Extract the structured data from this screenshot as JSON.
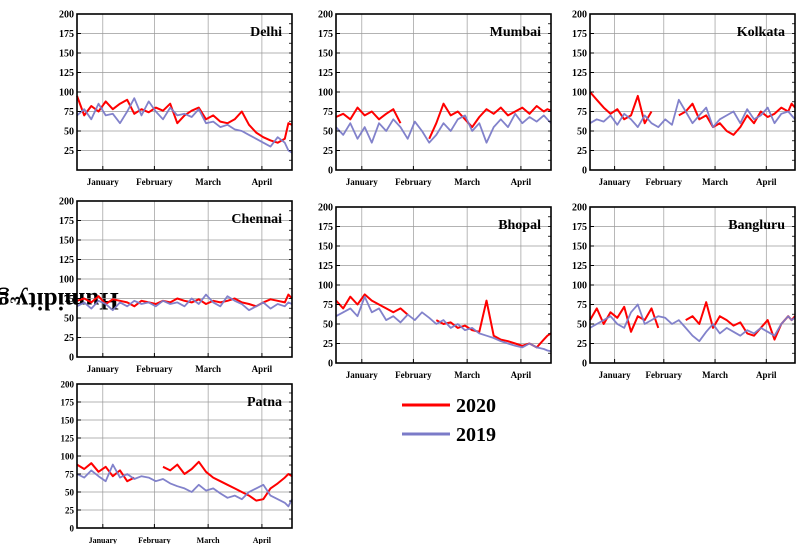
{
  "y_axis_label": "Humidity gram/m",
  "y_axis_label_sup": "3",
  "legend": [
    {
      "label": "2020",
      "color": "#ff0000"
    },
    {
      "label": "2019",
      "color": "#7b7bc8"
    }
  ],
  "chart_data": [
    {
      "type": "line",
      "title": "Delhi",
      "ylim": [
        0,
        200
      ],
      "yticks": [
        25,
        50,
        75,
        100,
        125,
        150,
        175,
        200
      ],
      "xticks": [
        "January",
        "February",
        "March",
        "April"
      ],
      "xlim": [
        0,
        120
      ],
      "grid": true,
      "series": [
        {
          "name": "2020",
          "x": [
            0,
            4,
            8,
            12,
            16,
            20,
            24,
            28,
            32,
            36,
            40,
            44,
            48,
            52,
            56,
            60,
            64,
            68,
            72,
            76,
            80,
            84,
            88,
            92,
            96,
            100,
            104,
            108,
            112,
            116,
            118,
            120
          ],
          "values": [
            95,
            70,
            82,
            75,
            88,
            78,
            85,
            90,
            72,
            78,
            74,
            80,
            76,
            85,
            60,
            70,
            76,
            80,
            65,
            70,
            62,
            60,
            65,
            75,
            58,
            48,
            42,
            38,
            35,
            40,
            60,
            58
          ]
        },
        {
          "name": "2019",
          "x": [
            0,
            4,
            8,
            12,
            16,
            20,
            24,
            28,
            32,
            36,
            40,
            44,
            48,
            52,
            56,
            60,
            64,
            68,
            72,
            76,
            80,
            84,
            88,
            92,
            96,
            100,
            104,
            108,
            112,
            116,
            118,
            120
          ],
          "values": [
            70,
            78,
            65,
            85,
            70,
            72,
            60,
            75,
            92,
            70,
            88,
            75,
            65,
            80,
            70,
            72,
            68,
            78,
            60,
            62,
            55,
            58,
            52,
            50,
            45,
            40,
            35,
            30,
            42,
            35,
            25,
            22
          ]
        }
      ]
    },
    {
      "type": "line",
      "title": "Mumbai",
      "ylim": [
        0,
        200
      ],
      "yticks": [
        0,
        25,
        50,
        75,
        100,
        125,
        150,
        175,
        200
      ],
      "xticks": [
        "January",
        "February",
        "March",
        "April"
      ],
      "xlim": [
        0,
        120
      ],
      "grid": true,
      "series": [
        {
          "name": "2020",
          "x": [
            0,
            4,
            8,
            12,
            16,
            20,
            24,
            28,
            32,
            36,
            40,
            44,
            48,
            52,
            56,
            60,
            64,
            68,
            72,
            76,
            80,
            84,
            88,
            92,
            96,
            100,
            104,
            108,
            112,
            116,
            118,
            120
          ],
          "values": [
            68,
            72,
            65,
            80,
            70,
            75,
            65,
            72,
            78,
            60,
            null,
            null,
            null,
            40,
            60,
            85,
            70,
            75,
            65,
            55,
            68,
            78,
            72,
            80,
            70,
            75,
            80,
            72,
            82,
            75,
            78,
            76
          ]
        },
        {
          "name": "2019",
          "x": [
            0,
            4,
            8,
            12,
            16,
            20,
            24,
            28,
            32,
            36,
            40,
            44,
            48,
            52,
            56,
            60,
            64,
            68,
            72,
            76,
            80,
            84,
            88,
            92,
            96,
            100,
            104,
            108,
            112,
            116,
            118,
            120
          ],
          "values": [
            55,
            45,
            60,
            40,
            55,
            35,
            60,
            50,
            65,
            55,
            40,
            62,
            50,
            35,
            45,
            60,
            50,
            65,
            70,
            50,
            60,
            35,
            55,
            65,
            55,
            72,
            60,
            68,
            62,
            70,
            65,
            60
          ]
        }
      ]
    },
    {
      "type": "line",
      "title": "Kolkata",
      "ylim": [
        0,
        200
      ],
      "yticks": [
        0,
        25,
        50,
        75,
        100,
        125,
        150,
        175,
        200
      ],
      "xticks": [
        "January",
        "February",
        "March",
        "April"
      ],
      "xlim": [
        0,
        120
      ],
      "grid": true,
      "series": [
        {
          "name": "2020",
          "x": [
            0,
            4,
            8,
            12,
            16,
            20,
            24,
            28,
            32,
            36,
            40,
            44,
            48,
            52,
            56,
            60,
            64,
            68,
            72,
            76,
            80,
            84,
            88,
            92,
            96,
            100,
            104,
            108,
            112,
            116,
            118,
            120
          ],
          "values": [
            100,
            90,
            80,
            72,
            78,
            65,
            70,
            95,
            60,
            75,
            null,
            null,
            null,
            70,
            75,
            85,
            65,
            70,
            55,
            60,
            50,
            45,
            55,
            70,
            60,
            75,
            68,
            72,
            80,
            75,
            85,
            80
          ]
        },
        {
          "name": "2019",
          "x": [
            0,
            4,
            8,
            12,
            16,
            20,
            24,
            28,
            32,
            36,
            40,
            44,
            48,
            52,
            56,
            60,
            64,
            68,
            72,
            76,
            80,
            84,
            88,
            92,
            96,
            100,
            104,
            108,
            112,
            116,
            118,
            120
          ],
          "values": [
            60,
            65,
            62,
            70,
            58,
            72,
            65,
            55,
            70,
            60,
            55,
            65,
            58,
            90,
            75,
            60,
            70,
            80,
            55,
            65,
            70,
            75,
            60,
            78,
            65,
            70,
            80,
            60,
            72,
            75,
            70,
            65
          ]
        }
      ]
    },
    {
      "type": "line",
      "title": "Chennai",
      "ylim": [
        0,
        200
      ],
      "yticks": [
        0,
        25,
        50,
        75,
        100,
        125,
        150,
        175,
        200
      ],
      "xticks": [
        "January",
        "February",
        "March",
        "April"
      ],
      "xlim": [
        0,
        120
      ],
      "grid": true,
      "series": [
        {
          "name": "2020",
          "x": [
            0,
            4,
            8,
            12,
            16,
            20,
            24,
            28,
            32,
            36,
            40,
            44,
            48,
            52,
            56,
            60,
            64,
            68,
            72,
            76,
            80,
            84,
            88,
            92,
            96,
            100,
            104,
            108,
            112,
            116,
            118,
            120
          ],
          "values": [
            72,
            75,
            70,
            78,
            68,
            74,
            72,
            70,
            65,
            72,
            70,
            68,
            72,
            70,
            75,
            72,
            70,
            74,
            68,
            72,
            70,
            72,
            75,
            70,
            68,
            65,
            70,
            74,
            72,
            70,
            80,
            75
          ]
        },
        {
          "name": "2019",
          "x": [
            0,
            4,
            8,
            12,
            16,
            20,
            24,
            28,
            32,
            36,
            40,
            44,
            48,
            52,
            56,
            60,
            64,
            68,
            72,
            76,
            80,
            84,
            88,
            92,
            96,
            100,
            104,
            108,
            112,
            116,
            118,
            120
          ],
          "values": [
            65,
            70,
            62,
            72,
            68,
            60,
            70,
            65,
            72,
            68,
            70,
            65,
            72,
            68,
            70,
            65,
            75,
            68,
            80,
            70,
            65,
            78,
            72,
            68,
            60,
            65,
            70,
            62,
            68,
            65,
            70,
            68
          ]
        }
      ]
    },
    {
      "type": "line",
      "title": "Bhopal",
      "ylim": [
        0,
        200
      ],
      "yticks": [
        0,
        25,
        50,
        75,
        100,
        125,
        150,
        175,
        200
      ],
      "xticks": [
        "January",
        "February",
        "March",
        "April"
      ],
      "xlim": [
        0,
        120
      ],
      "grid": true,
      "series": [
        {
          "name": "2020",
          "x": [
            0,
            4,
            8,
            12,
            16,
            20,
            24,
            28,
            32,
            36,
            40,
            44,
            48,
            52,
            56,
            60,
            64,
            68,
            72,
            76,
            80,
            84,
            88,
            92,
            96,
            100,
            104,
            108,
            112,
            116,
            118,
            120
          ],
          "values": [
            80,
            70,
            85,
            75,
            88,
            80,
            75,
            70,
            65,
            70,
            62,
            null,
            null,
            null,
            55,
            50,
            52,
            45,
            48,
            42,
            40,
            80,
            35,
            30,
            28,
            25,
            22,
            25,
            20,
            30,
            35,
            38
          ]
        },
        {
          "name": "2019",
          "x": [
            0,
            4,
            8,
            12,
            16,
            20,
            24,
            28,
            32,
            36,
            40,
            44,
            48,
            52,
            56,
            60,
            64,
            68,
            72,
            76,
            80,
            84,
            88,
            92,
            96,
            100,
            104,
            108,
            112,
            116,
            118,
            120
          ],
          "values": [
            60,
            65,
            70,
            60,
            85,
            65,
            70,
            55,
            60,
            52,
            62,
            55,
            65,
            58,
            50,
            55,
            45,
            50,
            42,
            45,
            38,
            35,
            32,
            28,
            25,
            22,
            20,
            25,
            20,
            18,
            16,
            15
          ]
        }
      ]
    },
    {
      "type": "line",
      "title": "Bangluru",
      "ylim": [
        0,
        200
      ],
      "yticks": [
        0,
        25,
        50,
        75,
        100,
        125,
        150,
        175,
        200
      ],
      "xticks": [
        "January",
        "February",
        "March",
        "April"
      ],
      "xlim": [
        0,
        120
      ],
      "grid": true,
      "series": [
        {
          "name": "2020",
          "x": [
            0,
            4,
            8,
            12,
            16,
            20,
            24,
            28,
            32,
            36,
            40,
            44,
            48,
            52,
            56,
            60,
            64,
            68,
            72,
            76,
            80,
            84,
            88,
            92,
            96,
            100,
            104,
            108,
            112,
            116,
            118,
            120
          ],
          "values": [
            55,
            70,
            50,
            65,
            58,
            72,
            40,
            60,
            55,
            70,
            45,
            null,
            null,
            null,
            55,
            60,
            50,
            78,
            45,
            60,
            55,
            48,
            52,
            38,
            35,
            45,
            55,
            30,
            50,
            60,
            55,
            60
          ]
        },
        {
          "name": "2019",
          "x": [
            0,
            4,
            8,
            12,
            16,
            20,
            24,
            28,
            32,
            36,
            40,
            44,
            48,
            52,
            56,
            60,
            64,
            68,
            72,
            76,
            80,
            84,
            88,
            92,
            96,
            100,
            104,
            108,
            112,
            116,
            118,
            120
          ],
          "values": [
            45,
            50,
            55,
            60,
            50,
            45,
            65,
            75,
            50,
            55,
            60,
            58,
            50,
            55,
            45,
            35,
            28,
            40,
            50,
            38,
            45,
            40,
            35,
            42,
            38,
            45,
            40,
            35,
            50,
            60,
            55,
            58
          ]
        }
      ]
    },
    {
      "type": "line",
      "title": "Patna",
      "ylim": [
        0,
        200
      ],
      "yticks": [
        0,
        25,
        50,
        75,
        100,
        125,
        150,
        175,
        200
      ],
      "xticks": [
        "January",
        "February",
        "March",
        "April"
      ],
      "xlim": [
        0,
        120
      ],
      "grid": true,
      "series": [
        {
          "name": "2020",
          "x": [
            0,
            4,
            8,
            12,
            16,
            20,
            24,
            28,
            32,
            36,
            40,
            44,
            48,
            52,
            56,
            60,
            64,
            68,
            72,
            76,
            80,
            84,
            88,
            92,
            96,
            100,
            104,
            108,
            112,
            116,
            118,
            120
          ],
          "values": [
            88,
            82,
            90,
            78,
            85,
            72,
            80,
            65,
            70,
            null,
            null,
            null,
            85,
            80,
            88,
            75,
            82,
            92,
            78,
            70,
            65,
            60,
            55,
            50,
            45,
            38,
            40,
            55,
            62,
            70,
            75,
            72
          ]
        },
        {
          "name": "2019",
          "x": [
            0,
            4,
            8,
            12,
            16,
            20,
            24,
            28,
            32,
            36,
            40,
            44,
            48,
            52,
            56,
            60,
            64,
            68,
            72,
            76,
            80,
            84,
            88,
            92,
            96,
            100,
            104,
            108,
            112,
            116,
            118,
            120
          ],
          "values": [
            75,
            70,
            80,
            72,
            65,
            88,
            70,
            75,
            68,
            72,
            70,
            65,
            68,
            62,
            58,
            55,
            50,
            60,
            52,
            55,
            48,
            42,
            45,
            40,
            50,
            55,
            60,
            45,
            40,
            35,
            30,
            40
          ]
        }
      ]
    }
  ]
}
